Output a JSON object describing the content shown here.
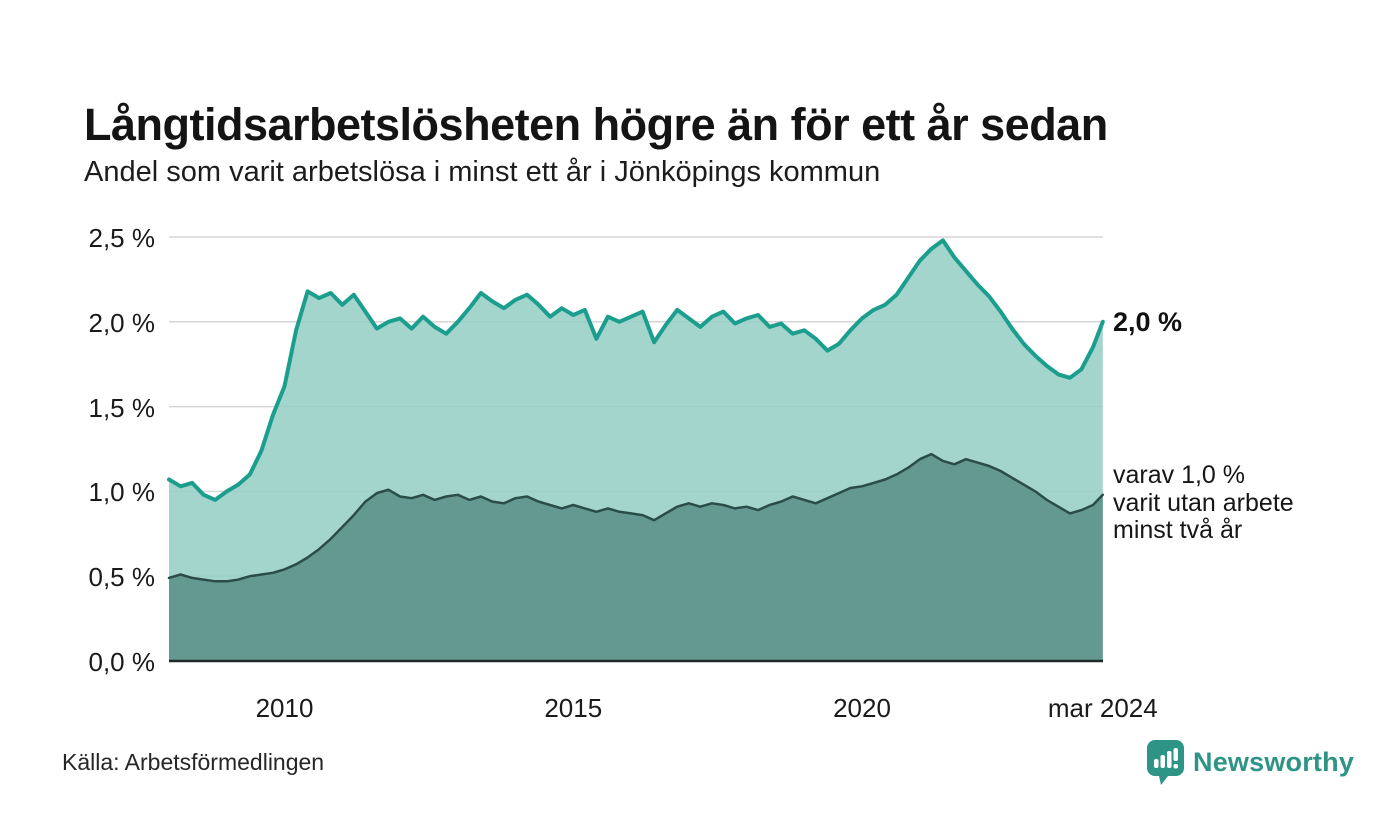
{
  "header": {
    "title": "Långtidsarbetslösheten högre än för ett år sedan",
    "subtitle": "Andel som varit arbetslösa i minst ett år i Jönköpings kommun"
  },
  "chart_data": {
    "type": "area",
    "title": "Långtidsarbetslösheten högre än för ett år sedan",
    "subtitle": "Andel som varit arbetslösa i minst ett år i Jönköpings kommun",
    "xlabel": "",
    "ylabel": "",
    "ylim": [
      0,
      2.5
    ],
    "xlim": [
      2008.0,
      2024.17
    ],
    "grid": true,
    "legend_position": "right-inline-annotations",
    "x": [
      2008.0,
      2008.2,
      2008.4,
      2008.6,
      2008.8,
      2009.0,
      2009.2,
      2009.4,
      2009.6,
      2009.8,
      2010.0,
      2010.2,
      2010.4,
      2010.6,
      2010.8,
      2011.0,
      2011.2,
      2011.4,
      2011.6,
      2011.8,
      2012.0,
      2012.2,
      2012.4,
      2012.6,
      2012.8,
      2013.0,
      2013.2,
      2013.4,
      2013.6,
      2013.8,
      2014.0,
      2014.2,
      2014.4,
      2014.6,
      2014.8,
      2015.0,
      2015.2,
      2015.4,
      2015.6,
      2015.8,
      2016.0,
      2016.2,
      2016.4,
      2016.6,
      2016.8,
      2017.0,
      2017.2,
      2017.4,
      2017.6,
      2017.8,
      2018.0,
      2018.2,
      2018.4,
      2018.6,
      2018.8,
      2019.0,
      2019.2,
      2019.4,
      2019.6,
      2019.8,
      2020.0,
      2020.2,
      2020.4,
      2020.6,
      2020.8,
      2021.0,
      2021.2,
      2021.4,
      2021.6,
      2021.8,
      2022.0,
      2022.2,
      2022.4,
      2022.6,
      2022.8,
      2023.0,
      2023.2,
      2023.4,
      2023.6,
      2023.8,
      2024.0,
      2024.17
    ],
    "series": [
      {
        "name": "Andel arbetslösa minst ett år",
        "end_value": "2,0 %",
        "line_color": "#1b9e8e",
        "fill_color": "#96cfc6",
        "line_width": 4,
        "values": [
          1.07,
          1.03,
          1.05,
          0.98,
          0.95,
          1.0,
          1.04,
          1.1,
          1.24,
          1.45,
          1.62,
          1.95,
          2.18,
          2.14,
          2.17,
          2.1,
          2.16,
          2.06,
          1.96,
          2.0,
          2.02,
          1.96,
          2.03,
          1.97,
          1.93,
          2.0,
          2.08,
          2.17,
          2.12,
          2.08,
          2.13,
          2.16,
          2.1,
          2.03,
          2.08,
          2.04,
          2.07,
          1.9,
          2.03,
          2.0,
          2.03,
          2.06,
          1.88,
          1.98,
          2.07,
          2.02,
          1.97,
          2.03,
          2.06,
          1.99,
          2.02,
          2.04,
          1.97,
          1.99,
          1.93,
          1.95,
          1.9,
          1.83,
          1.87,
          1.95,
          2.02,
          2.07,
          2.1,
          2.16,
          2.26,
          2.36,
          2.43,
          2.48,
          2.38,
          2.3,
          2.22,
          2.15,
          2.06,
          1.96,
          1.87,
          1.8,
          1.74,
          1.69,
          1.67,
          1.72,
          1.85,
          2.0
        ]
      },
      {
        "name": "Andel utan arbete minst två år",
        "end_value": "1,0 %",
        "line_color": "#2a4d48",
        "fill_color": "#5b918a",
        "line_width": 2.5,
        "values": [
          0.49,
          0.51,
          0.49,
          0.48,
          0.47,
          0.47,
          0.48,
          0.5,
          0.51,
          0.52,
          0.54,
          0.57,
          0.61,
          0.66,
          0.72,
          0.79,
          0.86,
          0.94,
          0.99,
          1.01,
          0.97,
          0.96,
          0.98,
          0.95,
          0.97,
          0.98,
          0.95,
          0.97,
          0.94,
          0.93,
          0.96,
          0.97,
          0.94,
          0.92,
          0.9,
          0.92,
          0.9,
          0.88,
          0.9,
          0.88,
          0.87,
          0.86,
          0.83,
          0.87,
          0.91,
          0.93,
          0.91,
          0.93,
          0.92,
          0.9,
          0.91,
          0.89,
          0.92,
          0.94,
          0.97,
          0.95,
          0.93,
          0.96,
          0.99,
          1.02,
          1.03,
          1.05,
          1.07,
          1.1,
          1.14,
          1.19,
          1.22,
          1.18,
          1.16,
          1.19,
          1.17,
          1.15,
          1.12,
          1.08,
          1.04,
          1.0,
          0.95,
          0.91,
          0.87,
          0.89,
          0.92,
          0.98
        ]
      }
    ],
    "yticks": [
      {
        "value": 2.5,
        "label": "2,5 %"
      },
      {
        "value": 2.0,
        "label": "2,0 %"
      },
      {
        "value": 1.5,
        "label": "1,5 %"
      },
      {
        "value": 1.0,
        "label": "1,0 %"
      },
      {
        "value": 0.5,
        "label": "0,5 %"
      },
      {
        "value": 0.0,
        "label": "0,0 %"
      }
    ],
    "xticks": [
      {
        "value": 2010,
        "label": "2010"
      },
      {
        "value": 2015,
        "label": "2015"
      },
      {
        "value": 2020,
        "label": "2020"
      },
      {
        "value": 2024.17,
        "label": "mar 2024"
      }
    ],
    "colors": {
      "grid": "#d6d6d6",
      "baseline": "#1c2b28",
      "background": "#ffffff"
    }
  },
  "annotations": {
    "series1_end": "2,0 %",
    "series2_end_lines": [
      "varav 1,0 %",
      "varit utan arbete",
      "minst två år"
    ]
  },
  "footer": {
    "source": "Källa: Arbetsförmedlingen",
    "logo_text": "Newsworthy",
    "logo_color": "#2e9486"
  }
}
